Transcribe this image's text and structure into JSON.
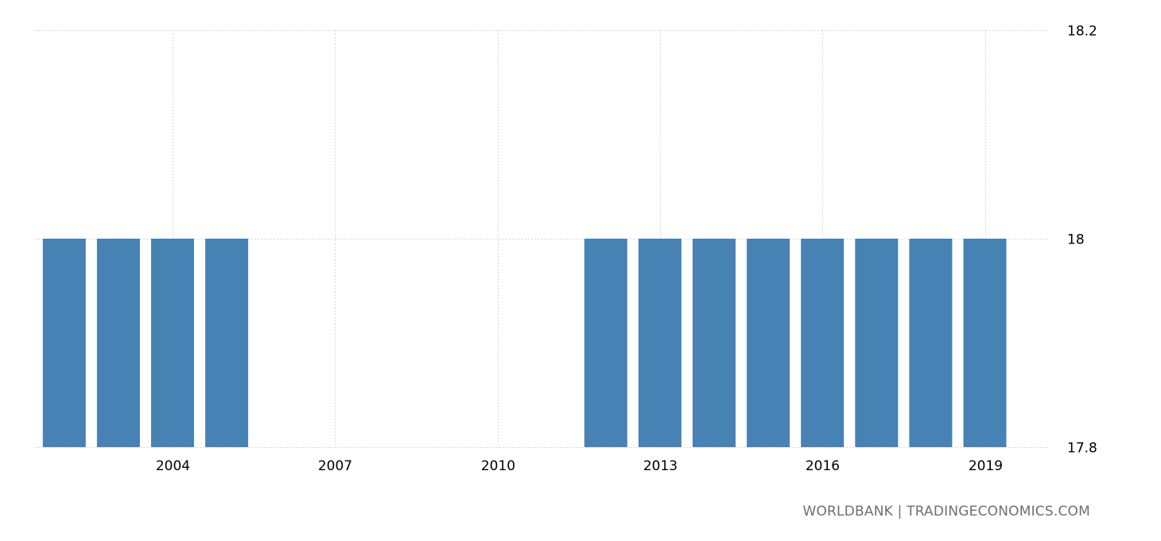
{
  "source_text": "WORLDBANK | TRADINGECONOMICS.COM",
  "chart_data": {
    "type": "bar",
    "title": "",
    "xlabel": "",
    "ylabel": "",
    "bar_color": "#4682b4",
    "grid_color": "#d9d9d9",
    "ylim": [
      17.8,
      18.2
    ],
    "y_ticks": [
      17.8,
      18,
      18.2
    ],
    "y_tick_labels": [
      "17.8",
      "18",
      "18.2"
    ],
    "x_ticks": [
      2004,
      2007,
      2010,
      2013,
      2016,
      2019
    ],
    "x_tick_labels": [
      "2004",
      "2007",
      "2010",
      "2013",
      "2016",
      "2019"
    ],
    "categories": [
      2002,
      2003,
      2004,
      2005,
      2012,
      2013,
      2014,
      2015,
      2016,
      2017,
      2018,
      2019
    ],
    "values": [
      18,
      18,
      18,
      18,
      18,
      18,
      18,
      18,
      18,
      18,
      18,
      18
    ],
    "grid": true,
    "y_axis_position": "right"
  }
}
